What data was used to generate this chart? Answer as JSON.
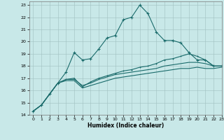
{
  "xlabel": "Humidex (Indice chaleur)",
  "xlim": [
    -0.5,
    23
  ],
  "ylim": [
    14,
    23.3
  ],
  "yticks": [
    14,
    15,
    16,
    17,
    18,
    19,
    20,
    21,
    22,
    23
  ],
  "xticks": [
    0,
    1,
    2,
    3,
    4,
    5,
    6,
    7,
    8,
    9,
    10,
    11,
    12,
    13,
    14,
    15,
    16,
    17,
    18,
    19,
    20,
    21,
    22,
    23
  ],
  "background_color": "#c8e8e8",
  "line_color": "#1a6b6b",
  "grid_color": "#a0c0c0",
  "line1_x": [
    0,
    1,
    2,
    3,
    4,
    5,
    6,
    7,
    8,
    9,
    10,
    11,
    12,
    13,
    14,
    15,
    16,
    17,
    18,
    19,
    20,
    21,
    22,
    23
  ],
  "line1_y": [
    14.3,
    14.8,
    15.7,
    16.6,
    17.5,
    19.1,
    18.5,
    18.6,
    19.4,
    20.3,
    20.5,
    21.8,
    22.0,
    23.0,
    22.3,
    20.8,
    20.1,
    20.1,
    19.9,
    19.1,
    18.5,
    18.5,
    18.0,
    18.0
  ],
  "line2_x": [
    0,
    1,
    2,
    3,
    4,
    5,
    6,
    7,
    8,
    9,
    10,
    11,
    12,
    13,
    14,
    15,
    16,
    17,
    18,
    19,
    20,
    21,
    22,
    23
  ],
  "line2_y": [
    14.3,
    14.8,
    15.7,
    16.6,
    16.9,
    17.0,
    16.3,
    16.7,
    17.0,
    17.2,
    17.4,
    17.6,
    17.7,
    17.9,
    18.0,
    18.2,
    18.5,
    18.6,
    18.8,
    19.0,
    18.8,
    18.5,
    18.0,
    18.0
  ],
  "line3_x": [
    0,
    1,
    2,
    3,
    4,
    5,
    6,
    7,
    8,
    9,
    10,
    11,
    12,
    13,
    14,
    15,
    16,
    17,
    18,
    19,
    20,
    21,
    22,
    23
  ],
  "line3_y": [
    14.3,
    14.8,
    15.7,
    16.6,
    16.9,
    16.9,
    16.4,
    16.6,
    16.9,
    17.1,
    17.3,
    17.4,
    17.5,
    17.6,
    17.7,
    17.8,
    18.0,
    18.1,
    18.2,
    18.3,
    18.3,
    18.2,
    18.0,
    18.0
  ],
  "line4_x": [
    0,
    1,
    2,
    3,
    4,
    5,
    6,
    7,
    8,
    9,
    10,
    11,
    12,
    13,
    14,
    15,
    16,
    17,
    18,
    19,
    20,
    21,
    22,
    23
  ],
  "line4_y": [
    14.3,
    14.8,
    15.7,
    16.6,
    16.8,
    16.8,
    16.2,
    16.4,
    16.6,
    16.8,
    17.0,
    17.1,
    17.2,
    17.3,
    17.4,
    17.5,
    17.6,
    17.7,
    17.8,
    17.8,
    17.9,
    17.8,
    17.8,
    17.9
  ]
}
